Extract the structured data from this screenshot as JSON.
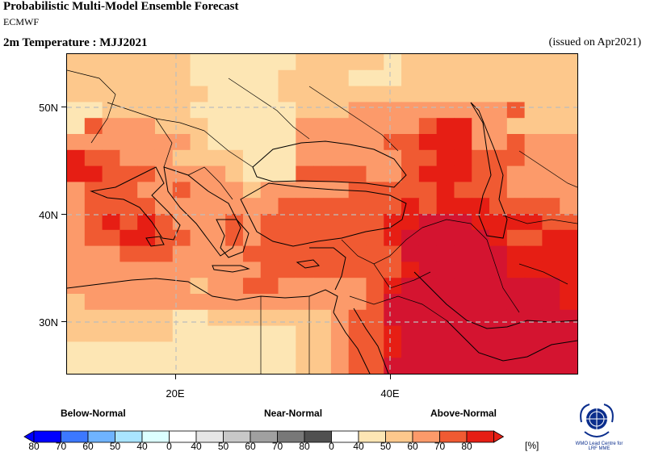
{
  "header": {
    "title": "Probabilistic Multi-Model Ensemble Forecast",
    "subtitle": "ECMWF",
    "variable": "2m Temperature : MJJ2021",
    "issued": "(issued on Apr2021)"
  },
  "axes": {
    "lat_labels": [
      "50N",
      "40N",
      "30N"
    ],
    "lon_labels": [
      "20E",
      "40E"
    ]
  },
  "legend": {
    "below": "Below-Normal",
    "near": "Near-Normal",
    "above": "Above-Normal",
    "unit": "[%]",
    "numbers": [
      "80",
      "70",
      "60",
      "50",
      "40",
      "0",
      "40",
      "50",
      "60",
      "70",
      "80",
      "0",
      "40",
      "50",
      "60",
      "70",
      "80"
    ],
    "colors": {
      "below": [
        "#0000ff",
        "#3c78ff",
        "#6fb3ff",
        "#a9e4ff",
        "#dcffff"
      ],
      "near_white": "#ffffff",
      "near": [
        "#e6e6e6",
        "#c8c8c8",
        "#a0a0a0",
        "#787878",
        "#505050"
      ],
      "above_white": "#ffffff",
      "above": [
        "#fde6b4",
        "#fdc88c",
        "#fc9a6a",
        "#f05a32",
        "#e61e14"
      ]
    }
  },
  "logo": {
    "line1": "WMO Lead Centre for",
    "line2": "LRF MME"
  },
  "map_colors": {
    "c40": "#fde6b4",
    "c50": "#fdc88c",
    "c60": "#fc9a6a",
    "c70": "#f05a32",
    "c80": "#e61e14",
    "c90": "#d41430"
  }
}
